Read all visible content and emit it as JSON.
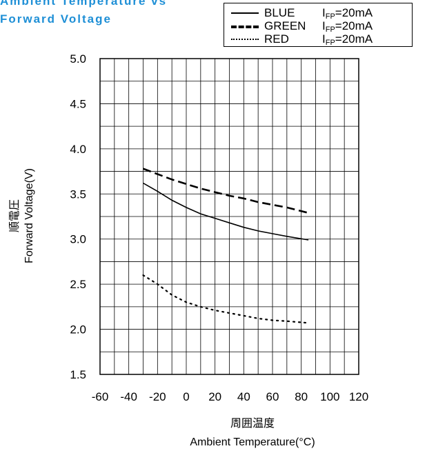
{
  "title_lines": [
    "Ambient Temperature vs",
    "Forward Voltage"
  ],
  "legend": [
    {
      "name": "BLUE",
      "condition_base": "I",
      "condition_sub": "FP",
      "condition_rest": "=20mA",
      "style": "solid"
    },
    {
      "name": "GREEN",
      "condition_base": "I",
      "condition_sub": "FP",
      "condition_rest": "=20mA",
      "style": "dashed"
    },
    {
      "name": "RED",
      "condition_base": "I",
      "condition_sub": "FP",
      "condition_rest": "=20mA",
      "style": "dotted"
    }
  ],
  "chart_data": {
    "type": "line",
    "title": "Ambient Temperature vs Forward Voltage",
    "xlabel_jp": "周囲温度",
    "xlabel": "Ambient Temperature(°C)",
    "ylabel_jp": "順電圧",
    "ylabel": "Forward Voltage(V)",
    "xlim": [
      -60,
      120
    ],
    "ylim": [
      1.5,
      5.0
    ],
    "x_ticks": [
      -60,
      -40,
      -20,
      0,
      20,
      40,
      60,
      80,
      100,
      120
    ],
    "y_ticks": [
      1.5,
      2.0,
      2.5,
      3.0,
      3.5,
      4.0,
      4.5,
      5.0
    ],
    "x_tick_labels": [
      "-60",
      "-40",
      "-20",
      "0",
      "20",
      "40",
      "60",
      "80",
      "100",
      "120"
    ],
    "y_tick_labels": [
      "1.5",
      "2.0",
      "2.5",
      "3.0",
      "3.5",
      "4.0",
      "4.5",
      "5.0"
    ],
    "grid": true,
    "legend_position": "top-right",
    "series": [
      {
        "name": "BLUE",
        "style": "solid",
        "x": [
          -30,
          -20,
          -10,
          0,
          10,
          20,
          30,
          40,
          50,
          60,
          70,
          85
        ],
        "y": [
          3.62,
          3.53,
          3.43,
          3.35,
          3.28,
          3.23,
          3.18,
          3.13,
          3.09,
          3.06,
          3.03,
          2.99
        ]
      },
      {
        "name": "GREEN",
        "style": "dashed",
        "x": [
          -30,
          -20,
          -10,
          0,
          10,
          20,
          30,
          40,
          50,
          60,
          70,
          85
        ],
        "y": [
          3.78,
          3.72,
          3.66,
          3.61,
          3.56,
          3.52,
          3.48,
          3.45,
          3.41,
          3.38,
          3.35,
          3.29
        ]
      },
      {
        "name": "RED",
        "style": "dotted",
        "x": [
          -30,
          -20,
          -10,
          0,
          10,
          20,
          30,
          40,
          50,
          60,
          70,
          85
        ],
        "y": [
          2.6,
          2.5,
          2.38,
          2.3,
          2.25,
          2.21,
          2.18,
          2.15,
          2.12,
          2.1,
          2.09,
          2.07
        ]
      }
    ]
  }
}
